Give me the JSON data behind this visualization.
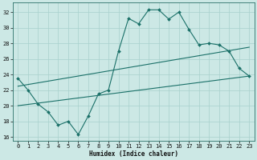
{
  "xlabel": "Humidex (Indice chaleur)",
  "xlim": [
    -0.5,
    23.5
  ],
  "ylim": [
    15.5,
    33.2
  ],
  "xticks": [
    0,
    1,
    2,
    3,
    4,
    5,
    6,
    7,
    8,
    9,
    10,
    11,
    12,
    13,
    14,
    15,
    16,
    17,
    18,
    19,
    20,
    21,
    22,
    23
  ],
  "yticks": [
    16,
    18,
    20,
    22,
    24,
    26,
    28,
    30,
    32
  ],
  "bg_color": "#cce8e5",
  "line_color": "#1a7068",
  "grid_color": "#a8d0cc",
  "line1_x": [
    0,
    1,
    2,
    3,
    4,
    5,
    6,
    7,
    8,
    9,
    10,
    11,
    12,
    13,
    14,
    15,
    16,
    17,
    18,
    19,
    20,
    21,
    22,
    23
  ],
  "line1_y": [
    23.5,
    22.0,
    20.2,
    19.2,
    17.5,
    18.0,
    16.3,
    18.7,
    21.5,
    22.0,
    27.0,
    31.2,
    30.5,
    32.3,
    32.3,
    31.1,
    32.0,
    29.8,
    27.8,
    28.0,
    27.8,
    27.0,
    24.8,
    23.8
  ],
  "line2_x": [
    0,
    23
  ],
  "line2_y": [
    22.5,
    27.5
  ],
  "line3_x": [
    0,
    23
  ],
  "line3_y": [
    20.0,
    23.8
  ]
}
